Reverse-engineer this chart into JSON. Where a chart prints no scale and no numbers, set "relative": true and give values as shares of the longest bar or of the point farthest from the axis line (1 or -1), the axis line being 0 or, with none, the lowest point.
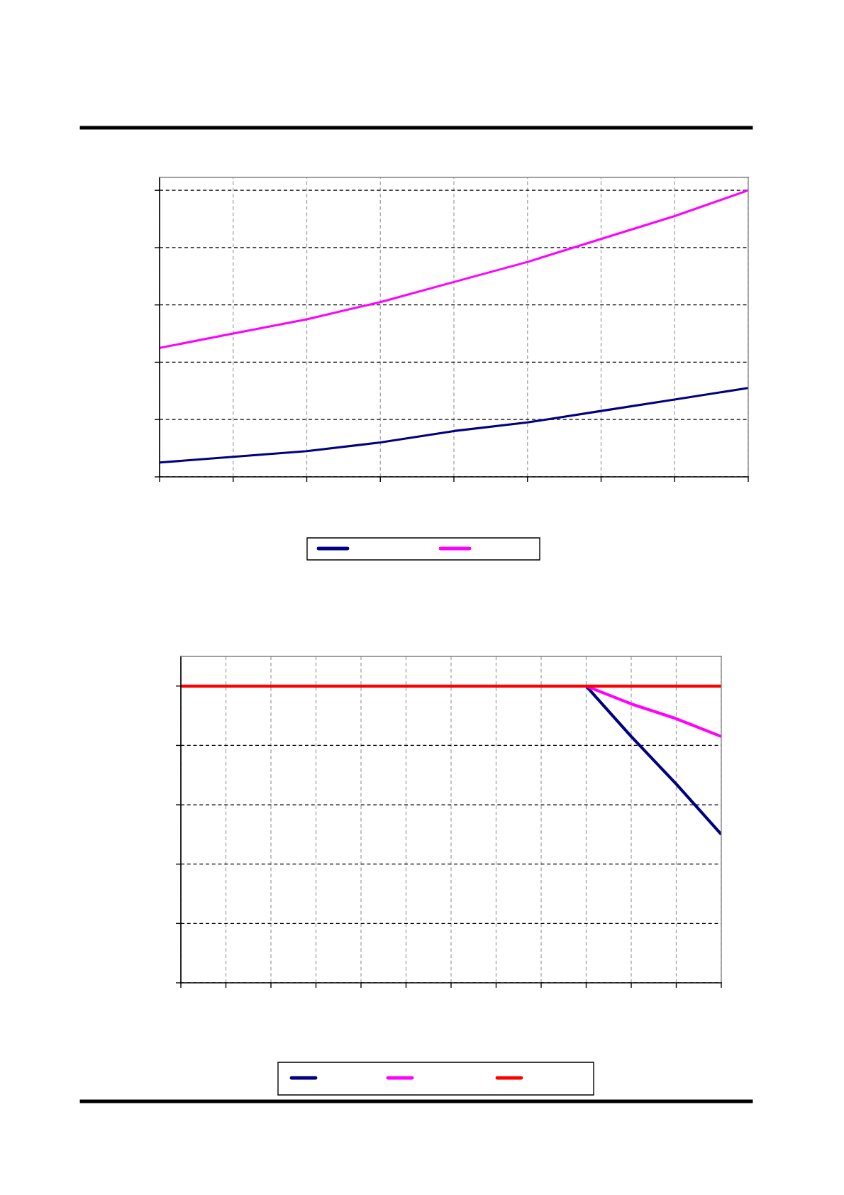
{
  "chart_data": [
    {
      "type": "line",
      "relative": true,
      "categories": [
        null,
        null,
        null,
        null,
        null,
        null,
        null,
        null,
        null
      ],
      "series": [
        {
          "color": "#000080",
          "values": [
            0.05,
            0.07,
            0.09,
            0.12,
            0.16,
            0.19,
            0.23,
            0.27,
            0.31
          ]
        },
        {
          "color": "#ff00ff",
          "values": [
            0.45,
            0.5,
            0.55,
            0.61,
            0.68,
            0.75,
            0.83,
            0.91,
            1.0
          ]
        }
      ],
      "grid": true
    },
    {
      "type": "line",
      "relative": true,
      "categories": [
        null,
        null,
        null,
        null,
        null,
        null,
        null,
        null,
        null,
        null,
        null,
        null,
        null
      ],
      "series": [
        {
          "color": "#000080",
          "values": [
            null,
            null,
            null,
            null,
            null,
            null,
            null,
            null,
            null,
            1.0,
            0.83,
            0.67,
            0.5
          ]
        },
        {
          "color": "#ff00ff",
          "values": [
            null,
            null,
            null,
            null,
            null,
            null,
            null,
            null,
            null,
            1.0,
            0.94,
            0.89,
            0.83
          ]
        },
        {
          "color": "#ff0000",
          "values": [
            1.0,
            1.0,
            1.0,
            1.0,
            1.0,
            1.0,
            1.0,
            1.0,
            1.0,
            1.0,
            1.0,
            1.0,
            1.0
          ]
        }
      ],
      "grid": true
    }
  ]
}
